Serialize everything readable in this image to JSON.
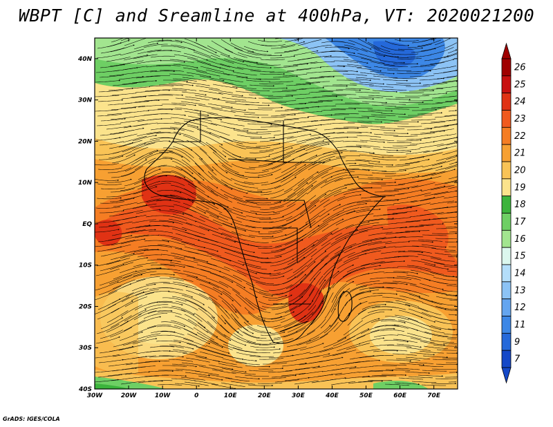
{
  "title": "WBPT [C] and Sreamline at 400hPa, VT: 2020021200",
  "credit": "GrADS: IGES/COLA",
  "map": {
    "lat_range": [
      -40,
      45
    ],
    "lon_range": [
      -30,
      77
    ],
    "lat_ticks": [
      {
        "value": 40,
        "label": "40N"
      },
      {
        "value": 30,
        "label": "30N"
      },
      {
        "value": 20,
        "label": "20N"
      },
      {
        "value": 10,
        "label": "10N"
      },
      {
        "value": 0,
        "label": "EQ"
      },
      {
        "value": -10,
        "label": "10S"
      },
      {
        "value": -20,
        "label": "20S"
      },
      {
        "value": -30,
        "label": "30S"
      },
      {
        "value": -40,
        "label": "40S"
      }
    ],
    "lon_ticks": [
      {
        "value": -30,
        "label": "30W"
      },
      {
        "value": -20,
        "label": "20W"
      },
      {
        "value": -10,
        "label": "10W"
      },
      {
        "value": 0,
        "label": "0"
      },
      {
        "value": 10,
        "label": "10E"
      },
      {
        "value": 20,
        "label": "20E"
      },
      {
        "value": 30,
        "label": "30E"
      },
      {
        "value": 40,
        "label": "40E"
      },
      {
        "value": 50,
        "label": "50E"
      },
      {
        "value": 60,
        "label": "60E"
      },
      {
        "value": 70,
        "label": "70E"
      }
    ]
  },
  "colorbar": {
    "levels": [
      {
        "label": "26",
        "color": "#a00000"
      },
      {
        "label": "25",
        "color": "#c81010"
      },
      {
        "label": "24",
        "color": "#e03214"
      },
      {
        "label": "23",
        "color": "#f05a1e"
      },
      {
        "label": "22",
        "color": "#f57d23"
      },
      {
        "label": "21",
        "color": "#f7a032"
      },
      {
        "label": "20",
        "color": "#f9c356"
      },
      {
        "label": "19",
        "color": "#fbe38c"
      },
      {
        "label": "18",
        "color": "#3cb43c"
      },
      {
        "label": "17",
        "color": "#6ecf64"
      },
      {
        "label": "16",
        "color": "#a2e58f"
      },
      {
        "label": "15",
        "color": "#dcf7ee"
      },
      {
        "label": "14",
        "color": "#b4defa"
      },
      {
        "label": "13",
        "color": "#8cc3f5"
      },
      {
        "label": "12",
        "color": "#64a5ef"
      },
      {
        "label": "11",
        "color": "#3c87e6"
      },
      {
        "label": "9",
        "color": "#2569da"
      },
      {
        "label": "7",
        "color": "#1448c8"
      }
    ]
  }
}
